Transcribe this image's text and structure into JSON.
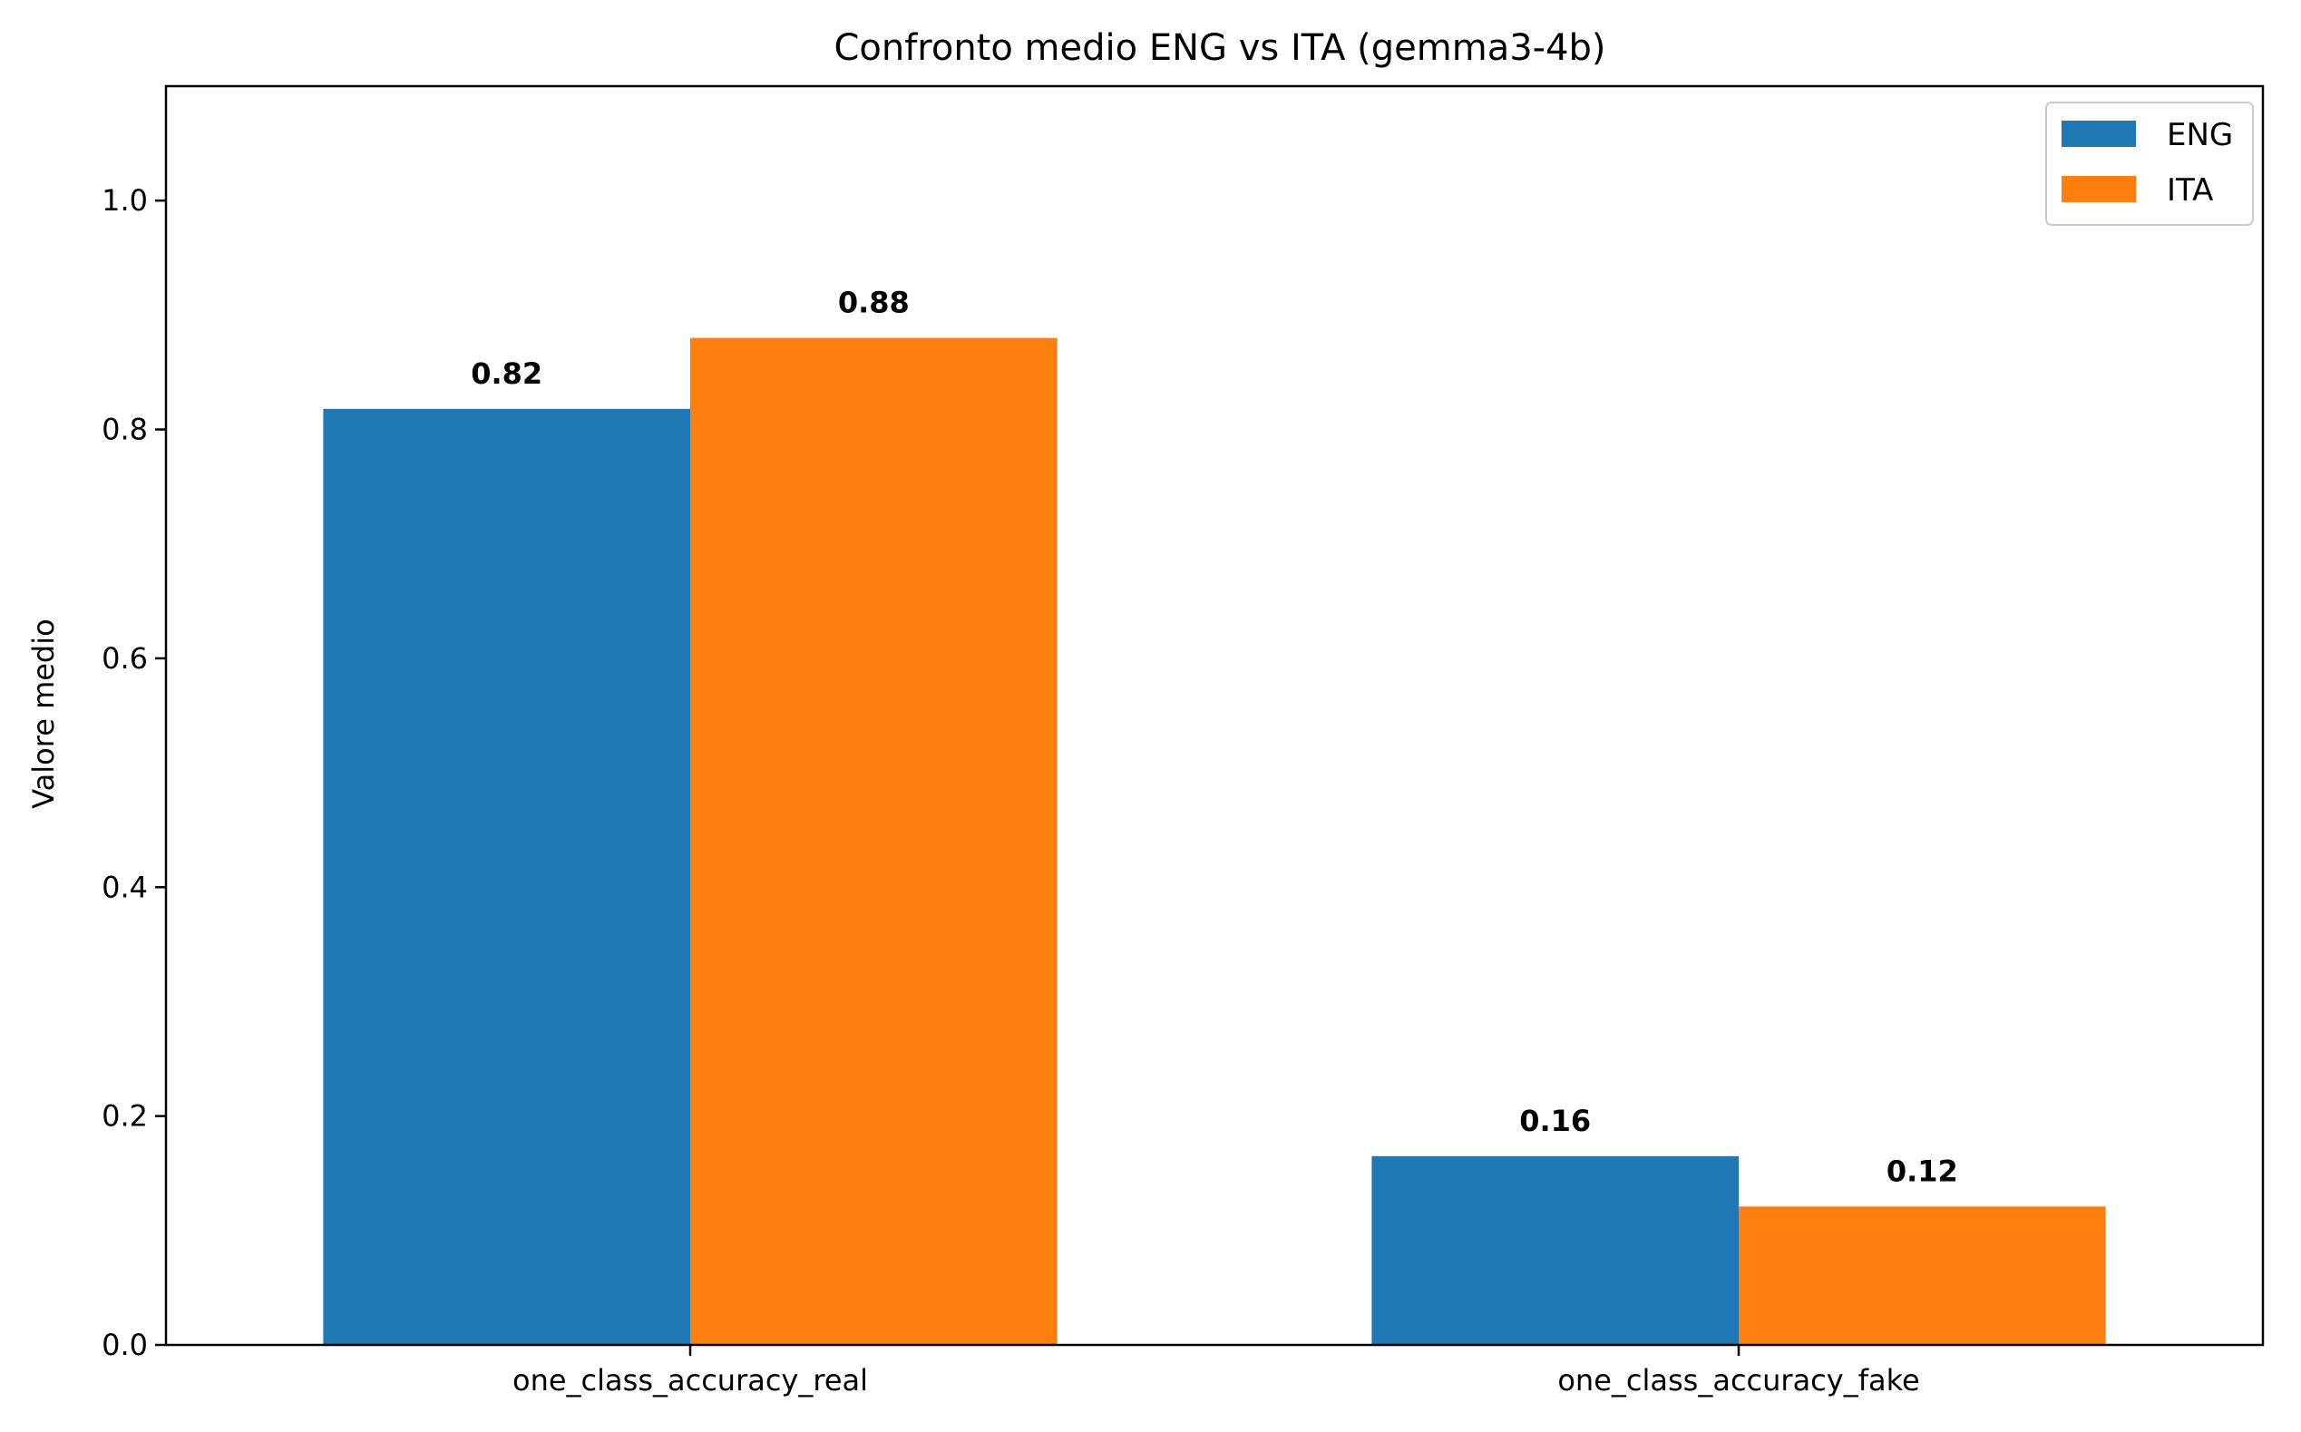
{
  "chart_data": {
    "type": "bar",
    "title": "Confronto medio ENG vs ITA (gemma3-4b)",
    "xlabel": "",
    "ylabel": "Valore medio",
    "categories": [
      "one_class_accuracy_real",
      "one_class_accuracy_fake"
    ],
    "series": [
      {
        "name": "ENG",
        "color": "#1f77b4",
        "values": [
          0.818,
          0.165
        ],
        "labels": [
          "0.82",
          "0.16"
        ]
      },
      {
        "name": "ITA",
        "color": "#ff7f0e",
        "values": [
          0.88,
          0.121
        ],
        "labels": [
          "0.88",
          "0.12"
        ]
      }
    ],
    "ylim": [
      0,
      1.1
    ],
    "yticks": [
      0.0,
      0.2,
      0.4,
      0.6,
      0.8,
      1.0
    ],
    "ytick_labels": [
      "0.0",
      "0.2",
      "0.4",
      "0.6",
      "0.8",
      "1.0"
    ],
    "grid": false,
    "legend_position": "top-right"
  }
}
